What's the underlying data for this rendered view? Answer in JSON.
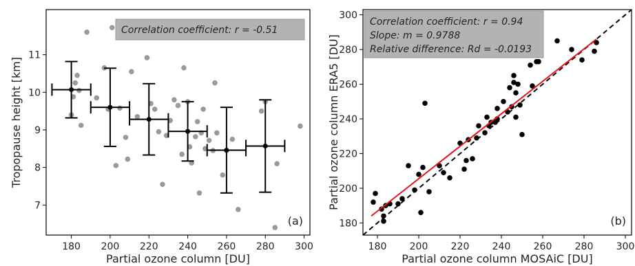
{
  "chart_data": [
    {
      "type": "scatter",
      "panel_label": "(a)",
      "xlabel": "Partial ozone column [DU]",
      "ylabel": "Tropopause height [km]",
      "xlim": [
        167,
        303
      ],
      "ylim": [
        6.2,
        12.2
      ],
      "xticks": [
        180,
        200,
        220,
        240,
        260,
        280,
        300
      ],
      "yticks": [
        7,
        8,
        9,
        10,
        11
      ],
      "annotation_lines": [
        "Correlation coefficient: r = -0.51"
      ],
      "points_color": "#9a9a9a",
      "points": [
        [
          180,
          9.4
        ],
        [
          181,
          9.88
        ],
        [
          182,
          10.25
        ],
        [
          183,
          10.45
        ],
        [
          184,
          10.05
        ],
        [
          185,
          9.12
        ],
        [
          188,
          11.6
        ],
        [
          193,
          9.85
        ],
        [
          197,
          10.65
        ],
        [
          199,
          9.55
        ],
        [
          201,
          11.72
        ],
        [
          203,
          8.05
        ],
        [
          205,
          9.58
        ],
        [
          208,
          8.8
        ],
        [
          209,
          8.22
        ],
        [
          211,
          10.55
        ],
        [
          214,
          9.35
        ],
        [
          219,
          10.92
        ],
        [
          221,
          9.7
        ],
        [
          223,
          9.55
        ],
        [
          225,
          8.95
        ],
        [
          227,
          7.55
        ],
        [
          229,
          8.85
        ],
        [
          231,
          9.25
        ],
        [
          233,
          9.8
        ],
        [
          235,
          9.65
        ],
        [
          237,
          8.35
        ],
        [
          238,
          10.65
        ],
        [
          240,
          9.75
        ],
        [
          241,
          8.55
        ],
        [
          242,
          8.12
        ],
        [
          244,
          8.82
        ],
        [
          245,
          9.22
        ],
        [
          246,
          7.32
        ],
        [
          247,
          8.92
        ],
        [
          248,
          9.55
        ],
        [
          249,
          8.5
        ],
        [
          251,
          8.72
        ],
        [
          253,
          8.45
        ],
        [
          254,
          10.25
        ],
        [
          255,
          8.92
        ],
        [
          258,
          7.8
        ],
        [
          260,
          8.45
        ],
        [
          263,
          8.75
        ],
        [
          266,
          6.88
        ],
        [
          278,
          9.5
        ],
        [
          280,
          9.75
        ],
        [
          285,
          6.4
        ],
        [
          286,
          8.1
        ],
        [
          298,
          9.1
        ]
      ],
      "binned_stats": {
        "color": "#000000",
        "bin_half_width": 10,
        "x": [
          180,
          200,
          220,
          240,
          260,
          280
        ],
        "y": [
          10.07,
          9.6,
          9.28,
          8.96,
          8.46,
          8.57
        ],
        "yerr": [
          0.75,
          1.04,
          0.95,
          0.79,
          1.14,
          1.23
        ]
      }
    },
    {
      "type": "scatter",
      "panel_label": "(b)",
      "xlabel": "Partial ozone column MOSAiC [DU]",
      "ylabel": "Partial ozone column ERA5 [DU]",
      "xlim": [
        173,
        303
      ],
      "ylim": [
        173,
        303
      ],
      "xticks": [
        180,
        200,
        220,
        240,
        260,
        280,
        300
      ],
      "yticks": [
        180,
        200,
        220,
        240,
        260,
        280,
        300
      ],
      "annotation_lines": [
        "Correlation coefficient: r = 0.94",
        "Slope: m = 0.9788",
        "Relative difference: Rd = -0.0193"
      ],
      "points_color": "#000000",
      "points": [
        [
          178,
          192
        ],
        [
          179,
          197
        ],
        [
          182,
          188
        ],
        [
          183,
          181
        ],
        [
          183,
          184
        ],
        [
          184,
          190
        ],
        [
          186,
          191
        ],
        [
          190,
          191
        ],
        [
          192,
          194
        ],
        [
          195,
          213
        ],
        [
          198,
          199
        ],
        [
          200,
          208
        ],
        [
          201,
          186
        ],
        [
          202,
          212
        ],
        [
          203,
          249
        ],
        [
          205,
          198
        ],
        [
          210,
          213
        ],
        [
          212,
          209
        ],
        [
          215,
          206
        ],
        [
          220,
          226
        ],
        [
          222,
          211
        ],
        [
          223,
          216
        ],
        [
          224,
          228
        ],
        [
          226,
          217
        ],
        [
          228,
          229
        ],
        [
          229,
          236
        ],
        [
          232,
          232
        ],
        [
          233,
          241
        ],
        [
          234,
          236
        ],
        [
          235,
          238
        ],
        [
          237,
          238
        ],
        [
          238,
          240
        ],
        [
          238,
          246
        ],
        [
          241,
          250
        ],
        [
          243,
          244
        ],
        [
          244,
          258
        ],
        [
          245,
          247
        ],
        [
          246,
          265
        ],
        [
          246,
          261
        ],
        [
          247,
          255
        ],
        [
          247,
          241
        ],
        [
          248,
          260
        ],
        [
          249,
          248
        ],
        [
          250,
          231
        ],
        [
          254,
          271
        ],
        [
          255,
          259
        ],
        [
          257,
          273
        ],
        [
          258,
          273
        ],
        [
          267,
          285
        ],
        [
          274,
          280
        ],
        [
          279,
          274
        ],
        [
          285,
          279
        ],
        [
          286,
          284
        ]
      ],
      "fit_line": {
        "color": "#e8161b",
        "from": [
          177,
          184
        ],
        "to": [
          286,
          286
        ]
      },
      "identity_line": {
        "color": "#000000",
        "style": "dashed"
      }
    }
  ]
}
